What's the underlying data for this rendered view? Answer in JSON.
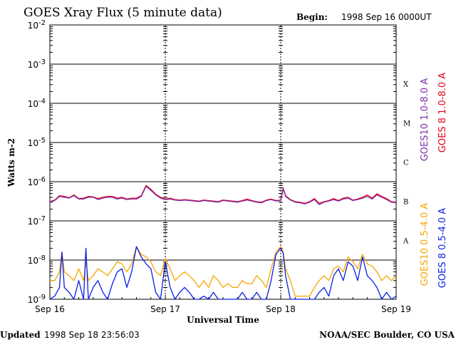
{
  "header": {
    "title": "GOES Xray Flux (5 minute data)",
    "begin_label": "Begin:",
    "begin_value": "1998 Sep 16 0000UT"
  },
  "footer": {
    "updated_label": "Updated",
    "updated_value": "1998 Sep 18 23:56:03",
    "credit": "NOAA/SEC Boulder, CO USA"
  },
  "colors": {
    "goes10_long": "#7b2fa8",
    "goes8_long": "#e8001c",
    "goes10_short": "#f5a500",
    "goes8_short": "#0a1ee6"
  },
  "chart_data": {
    "type": "line",
    "title": "GOES Xray Flux (5 minute data)",
    "xlabel": "Universal Time",
    "ylabel": "Watts m-2",
    "y_scale": "log",
    "ylim": [
      1e-09,
      0.01
    ],
    "xlim": [
      0,
      72
    ],
    "x_units": "hours since 1998 Sep 16 0000UT",
    "y_ticks": [
      {
        "value": 0.01,
        "base": "10",
        "exp": "-2"
      },
      {
        "value": 0.001,
        "base": "10",
        "exp": "-3"
      },
      {
        "value": 0.0001,
        "base": "10",
        "exp": "-4"
      },
      {
        "value": 1e-05,
        "base": "10",
        "exp": "-5"
      },
      {
        "value": 1e-06,
        "base": "10",
        "exp": "-6"
      },
      {
        "value": 1e-07,
        "base": "10",
        "exp": "-7"
      },
      {
        "value": 1e-08,
        "base": "10",
        "exp": "-8"
      },
      {
        "value": 1e-09,
        "base": "10",
        "exp": "-9"
      }
    ],
    "x_ticks": [
      {
        "value": 0,
        "label": "Sep 16"
      },
      {
        "value": 24,
        "label": "Sep 17"
      },
      {
        "value": 48,
        "label": "Sep 18"
      },
      {
        "value": 72,
        "label": "Sep 19"
      }
    ],
    "flare_classes": [
      {
        "label": "X",
        "value": 0.0001
      },
      {
        "label": "M",
        "value": 1e-05
      },
      {
        "label": "C",
        "value": 1e-06
      },
      {
        "label": "B",
        "value": 1e-07
      },
      {
        "label": "A",
        "value": 1e-08
      }
    ],
    "grid": true,
    "legend_placement": "right",
    "series": [
      {
        "name": "GOES10 1.0-8.0 A",
        "color": "#7b2fa8",
        "x": [
          0,
          1,
          2,
          3,
          4,
          5,
          6,
          7,
          8,
          9,
          10,
          11,
          12,
          13,
          14,
          15,
          16,
          17,
          18,
          19,
          20,
          21,
          22,
          23,
          24,
          25,
          26,
          27,
          28,
          29,
          30,
          31,
          32,
          33,
          34,
          35,
          36,
          37,
          38,
          39,
          40,
          41,
          42,
          43,
          44,
          45,
          46,
          47,
          48,
          48.5,
          49,
          50,
          51,
          52,
          53,
          54,
          55,
          56,
          57,
          58,
          59,
          60,
          61,
          62,
          63,
          64,
          65,
          66,
          67,
          68,
          69,
          70,
          71,
          72
        ],
        "values": [
          3e-07,
          3.3e-07,
          4.2e-07,
          4e-07,
          3.8e-07,
          4.4e-07,
          3.6e-07,
          3.6e-07,
          4e-07,
          4e-07,
          3.5e-07,
          3.8e-07,
          4e-07,
          4e-07,
          3.6e-07,
          3.8e-07,
          3.5e-07,
          3.6e-07,
          3.6e-07,
          4.2e-07,
          7.6e-07,
          6e-07,
          4.6e-07,
          3.8e-07,
          3.5e-07,
          3.6e-07,
          3.4e-07,
          3.3e-07,
          3.4e-07,
          3.3e-07,
          3.2e-07,
          3.1e-07,
          3.3e-07,
          3.2e-07,
          3.1e-07,
          3e-07,
          3.3e-07,
          3.2e-07,
          3.1e-07,
          3e-07,
          3.2e-07,
          3.4e-07,
          3.2e-07,
          3e-07,
          2.9e-07,
          3.3e-07,
          3.5e-07,
          3.2e-07,
          3.3e-07,
          6.5e-07,
          4.2e-07,
          3.4e-07,
          3e-07,
          2.9e-07,
          2.7e-07,
          3e-07,
          3.5e-07,
          2.6e-07,
          3e-07,
          3.2e-07,
          3.5e-07,
          3.2e-07,
          3.6e-07,
          3.8e-07,
          3.3e-07,
          3.5e-07,
          3.8e-07,
          4.2e-07,
          3.6e-07,
          4.6e-07,
          4e-07,
          3.5e-07,
          3e-07,
          2.9e-07
        ]
      },
      {
        "name": "GOES 8 1.0-8.0 A",
        "color": "#e8001c",
        "x": [
          0,
          1,
          2,
          3,
          4,
          5,
          6,
          7,
          8,
          9,
          10,
          11,
          12,
          13,
          14,
          15,
          16,
          17,
          18,
          19,
          20,
          21,
          22,
          23,
          24,
          25,
          26,
          27,
          28,
          29,
          30,
          31,
          32,
          33,
          34,
          35,
          36,
          37,
          38,
          39,
          40,
          41,
          42,
          43,
          44,
          45,
          46,
          47,
          48,
          48.5,
          49,
          50,
          51,
          52,
          53,
          54,
          55,
          56,
          57,
          58,
          59,
          60,
          61,
          62,
          63,
          64,
          65,
          66,
          67,
          68,
          69,
          70,
          71,
          72
        ],
        "values": [
          3.1e-07,
          3.4e-07,
          4.4e-07,
          4.2e-07,
          3.9e-07,
          4.6e-07,
          3.7e-07,
          3.8e-07,
          4.2e-07,
          4.1e-07,
          3.7e-07,
          4e-07,
          4.2e-07,
          4.2e-07,
          3.8e-07,
          4e-07,
          3.6e-07,
          3.8e-07,
          3.8e-07,
          4.4e-07,
          8e-07,
          6.4e-07,
          4.8e-07,
          4e-07,
          3.6e-07,
          3.8e-07,
          3.5e-07,
          3.4e-07,
          3.5e-07,
          3.4e-07,
          3.3e-07,
          3.2e-07,
          3.4e-07,
          3.3e-07,
          3.2e-07,
          3.1e-07,
          3.4e-07,
          3.3e-07,
          3.2e-07,
          3.1e-07,
          3.3e-07,
          3.6e-07,
          3.3e-07,
          3.1e-07,
          3e-07,
          3.4e-07,
          3.6e-07,
          3.3e-07,
          3.4e-07,
          6.9e-07,
          4.4e-07,
          3.5e-07,
          3.1e-07,
          3e-07,
          2.8e-07,
          3.1e-07,
          3.7e-07,
          2.8e-07,
          3.1e-07,
          3.3e-07,
          3.7e-07,
          3.3e-07,
          3.8e-07,
          4e-07,
          3.4e-07,
          3.6e-07,
          4e-07,
          4.6e-07,
          3.8e-07,
          4.9e-07,
          4.2e-07,
          3.7e-07,
          3.1e-07,
          3e-07
        ]
      },
      {
        "name": "GOES10 0.5-4.0 A",
        "color": "#f5a500",
        "x": [
          0,
          1,
          2,
          2.5,
          3,
          4,
          5,
          6,
          7,
          7.5,
          8,
          9,
          10,
          11,
          12,
          13,
          14,
          15,
          16,
          17,
          18,
          19,
          20,
          21,
          22,
          23,
          24,
          25,
          26,
          27,
          28,
          29,
          30,
          31,
          32,
          33,
          34,
          35,
          36,
          37,
          38,
          39,
          40,
          41,
          42,
          43,
          44,
          45,
          46,
          47,
          48,
          48.5,
          49,
          50,
          51,
          52,
          53,
          54,
          55,
          56,
          57,
          58,
          59,
          60,
          61,
          62,
          63,
          64,
          65,
          66,
          67,
          68,
          69,
          70,
          71,
          72
        ],
        "values": [
          3e-09,
          3e-09,
          5e-09,
          1.6e-08,
          5e-09,
          4e-09,
          3e-09,
          6e-09,
          3e-09,
          9e-09,
          3e-09,
          4e-09,
          6e-09,
          5e-09,
          4e-09,
          6e-09,
          9e-09,
          8e-09,
          5e-09,
          8e-09,
          2.2e-08,
          1.4e-08,
          1.2e-08,
          9e-09,
          5e-09,
          4e-09,
          1.1e-08,
          6e-09,
          3e-09,
          4e-09,
          5e-09,
          4e-09,
          3e-09,
          2e-09,
          3e-09,
          2e-09,
          4e-09,
          3e-09,
          2e-09,
          2.5e-09,
          2e-09,
          2e-09,
          3e-09,
          2.5e-09,
          2.5e-09,
          4e-09,
          3e-09,
          2e-09,
          6e-09,
          1.6e-08,
          2.2e-08,
          1.6e-08,
          6e-09,
          3e-09,
          1.2e-09,
          1.2e-09,
          1.2e-09,
          1.2e-09,
          2e-09,
          3e-09,
          4e-09,
          3e-09,
          6e-09,
          7e-09,
          5e-09,
          1.2e-08,
          9e-09,
          6e-09,
          1.4e-08,
          8e-09,
          7e-09,
          5e-09,
          3e-09,
          4e-09,
          3e-09,
          4e-09
        ]
      },
      {
        "name": "GOES 8 0.5-4.0 A",
        "color": "#0a1ee6",
        "x": [
          0,
          1,
          2,
          2.5,
          3,
          4,
          5,
          6,
          7,
          7.5,
          8,
          9,
          10,
          11,
          12,
          13,
          14,
          15,
          16,
          17,
          18,
          19,
          20,
          21,
          22,
          23,
          24,
          25,
          26,
          27,
          28,
          29,
          30,
          31,
          32,
          33,
          34,
          35,
          36,
          37,
          38,
          39,
          40,
          41,
          42,
          43,
          44,
          45,
          46,
          47,
          48,
          48.5,
          49,
          50,
          51,
          52,
          53,
          54,
          55,
          56,
          57,
          58,
          59,
          60,
          61,
          62,
          63,
          64,
          65,
          66,
          67,
          68,
          69,
          70,
          71,
          72
        ],
        "values": [
          1e-09,
          1.2e-09,
          2e-09,
          1.6e-08,
          2e-09,
          1.5e-09,
          1e-09,
          3e-09,
          1e-09,
          2e-08,
          1e-09,
          2e-09,
          3e-09,
          1.5e-09,
          1e-09,
          2.5e-09,
          5e-09,
          6e-09,
          2e-09,
          5e-09,
          2.2e-08,
          1.2e-08,
          8e-09,
          6e-09,
          1.5e-09,
          1e-09,
          9e-09,
          2e-09,
          1e-09,
          1.5e-09,
          2e-09,
          1.5e-09,
          1e-09,
          1e-09,
          1.2e-09,
          1e-09,
          1.5e-09,
          1e-09,
          1e-09,
          1e-09,
          1e-09,
          1e-09,
          1.5e-09,
          1e-09,
          1e-09,
          1.5e-09,
          1e-09,
          1e-09,
          3e-09,
          1.4e-08,
          2e-08,
          1.5e-08,
          4e-09,
          1e-09,
          1e-09,
          1e-09,
          1e-09,
          1e-09,
          1e-09,
          1.5e-09,
          2e-09,
          1.2e-09,
          4e-09,
          6e-09,
          3e-09,
          9e-09,
          7e-09,
          3e-09,
          1.2e-08,
          4e-09,
          3e-09,
          2e-09,
          1e-09,
          1.5e-09,
          1e-09,
          1.2e-09
        ]
      }
    ]
  }
}
